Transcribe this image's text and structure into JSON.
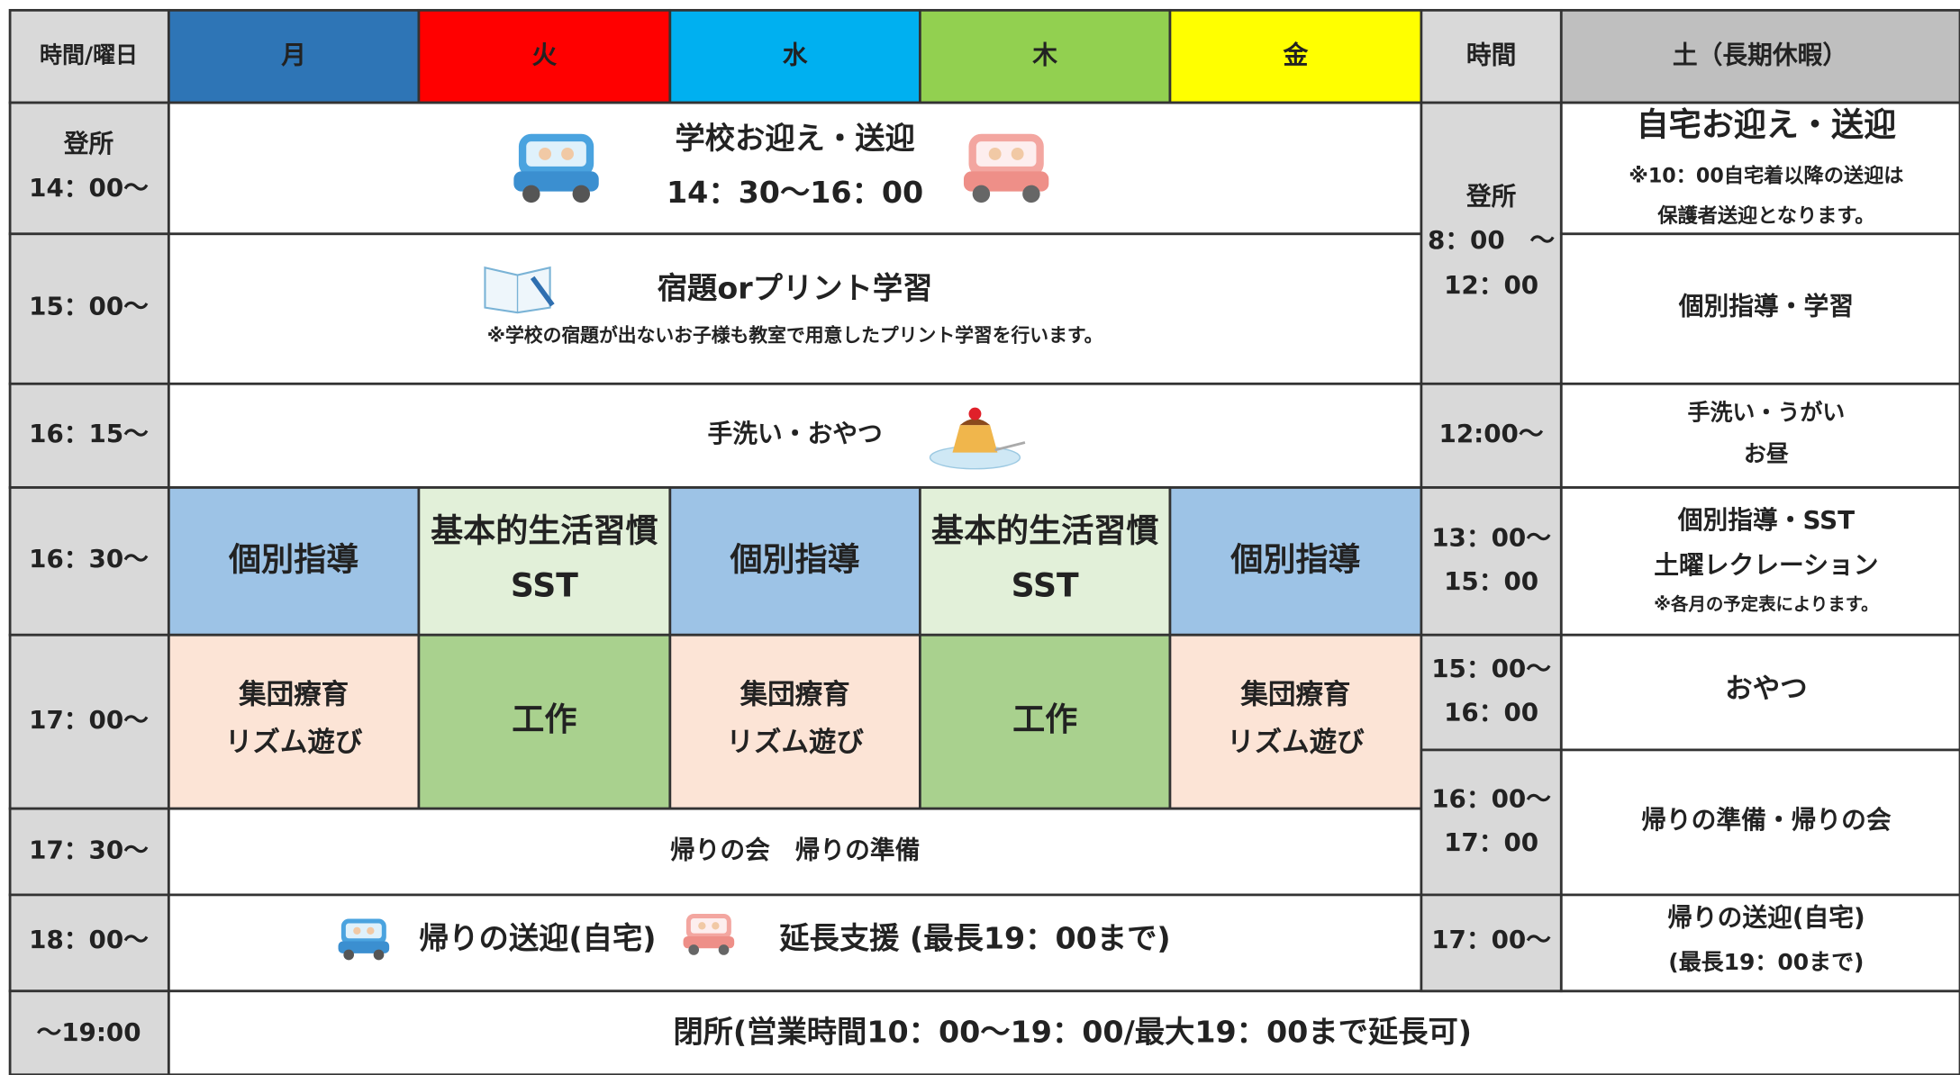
{
  "header": {
    "time_weekday": "時間/曜日",
    "days": [
      "月",
      "火",
      "水",
      "木",
      "金"
    ],
    "time": "時間",
    "saturday": "土（長期休暇）"
  },
  "weekday": {
    "times": [
      [
        "登所",
        "14：00～"
      ],
      [
        "15：00～"
      ],
      [
        "16：15～"
      ],
      [
        "16：30～"
      ],
      [
        "17：00～"
      ],
      [
        "17：30～"
      ],
      [
        "18：00～"
      ],
      [
        "～19:00"
      ]
    ],
    "pickup": [
      "学校お迎え・送迎",
      "14：30～16：00"
    ],
    "homework": {
      "title": "宿題orプリント学習",
      "note": "※学校の宿題が出ないお子様も教室で用意したプリント学習を行います。"
    },
    "snack": "手洗い・おやつ",
    "activities_1630": [
      [
        "個別指導"
      ],
      [
        "基本的生活習慣",
        "SST"
      ],
      [
        "個別指導"
      ],
      [
        "基本的生活習慣",
        "SST"
      ],
      [
        "個別指導"
      ]
    ],
    "activities_1700": [
      [
        "集団療育",
        "リズム遊び"
      ],
      [
        "工作"
      ],
      [
        "集団療育",
        "リズム遊び"
      ],
      [
        "工作"
      ],
      [
        "集団療育",
        "リズム遊び"
      ]
    ],
    "meeting": "帰りの会　帰りの準備",
    "return": {
      "transport": "帰りの送迎(自宅)",
      "extension": "延長支援 (最長19：00まで)"
    }
  },
  "closing": "閉所(営業時間10：00～19：00/最大19：00まで延長可)",
  "saturday": {
    "times": [
      [
        "登所",
        "8：00　～",
        "12：00"
      ],
      [
        "12:00～"
      ],
      [
        "13：00～",
        "15：00"
      ],
      [
        "15：00～",
        "16：00"
      ],
      [
        "16：00～",
        "17：00"
      ],
      [
        "17：00～"
      ]
    ],
    "activities": [
      [
        "自宅お迎え・送迎",
        "※10：00自宅着以降の送迎は",
        "保護者送迎となります。"
      ],
      [
        "個別指導・学習"
      ],
      [
        "手洗い・うがい",
        "お昼"
      ],
      [
        "個別指導・SST",
        "土曜レクレーション",
        "※各月の予定表によります。"
      ],
      [
        "おやつ"
      ],
      [
        "帰りの準備・帰りの会"
      ],
      [
        "帰りの送迎(自宅)",
        "(最長19：00まで)"
      ]
    ]
  }
}
